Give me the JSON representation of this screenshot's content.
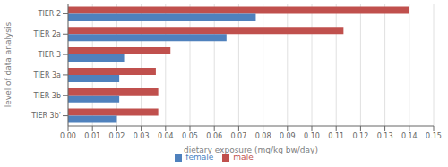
{
  "chart_data": {
    "type": "bar",
    "orientation": "horizontal",
    "categories": [
      "TIER 2",
      "TIER 2a",
      "TIER 3",
      "TIER 3a",
      "TIER 3b",
      "TIER 3b'"
    ],
    "series": [
      {
        "name": "male",
        "color": "#c0504d",
        "values": [
          0.14,
          0.113,
          0.042,
          0.036,
          0.037,
          0.037
        ]
      },
      {
        "name": "female",
        "color": "#4f81bd",
        "values": [
          0.077,
          0.065,
          0.023,
          0.021,
          0.021,
          0.02
        ]
      }
    ],
    "xlabel": "dietary exposure (mg/kg bw/day)",
    "ylabel": "level of data analysis",
    "xlim": [
      0.0,
      0.15
    ],
    "xticks": [
      {
        "value": 0.0,
        "label": "0.00"
      },
      0.01,
      0.02,
      0.03,
      0.04,
      0.05,
      0.06,
      0.07,
      0.08,
      0.09,
      {
        "value": 0.1,
        "label": "0.10"
      },
      0.11,
      0.12,
      0.13,
      0.14,
      0.15
    ],
    "grid": true,
    "legend": "bottom"
  }
}
